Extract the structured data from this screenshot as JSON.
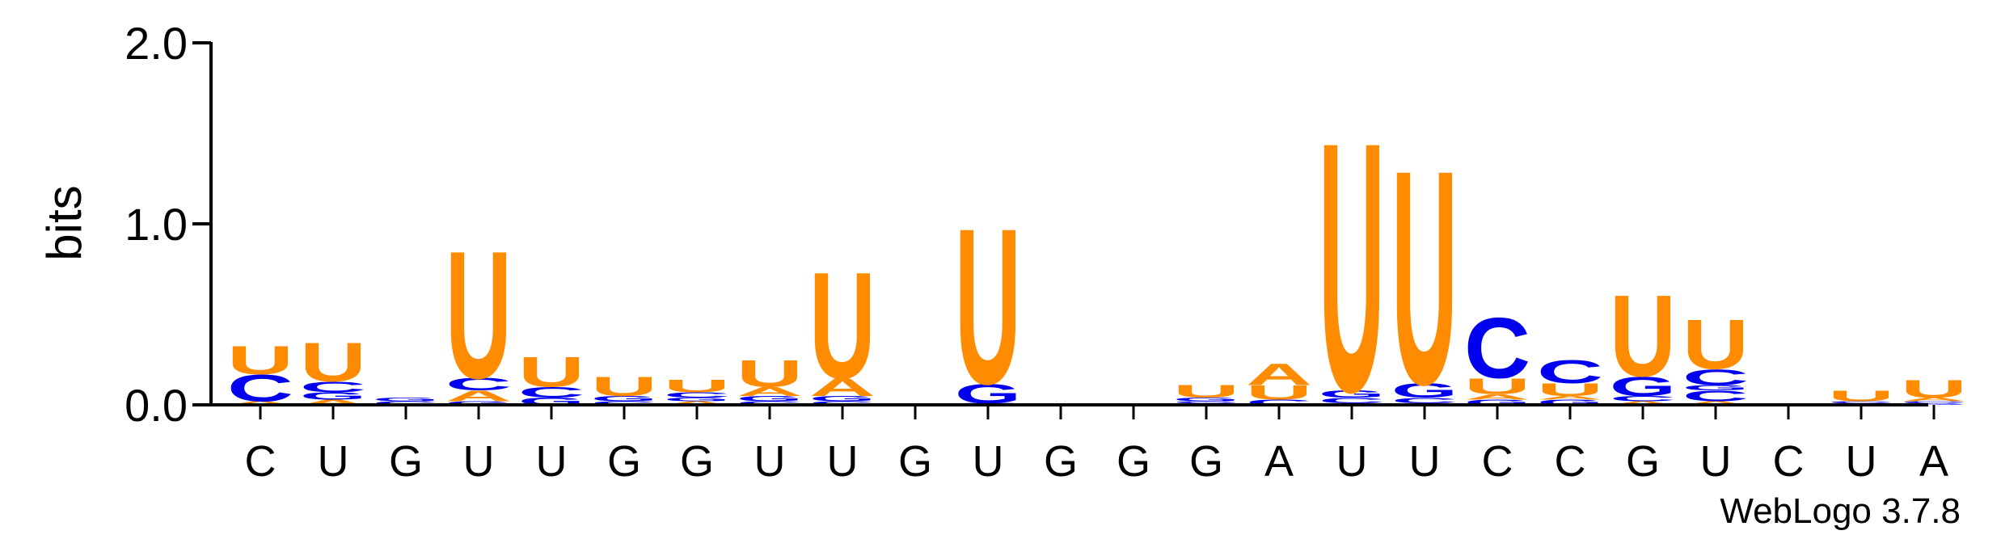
{
  "chart_data": {
    "type": "sequence-logo",
    "ylabel": "bits",
    "ylim": [
      0,
      2.0
    ],
    "yticks": [
      "0.0",
      "1.0",
      "2.0"
    ],
    "colors": {
      "U": "#ff8c00",
      "A": "#ff8c00",
      "C": "#0000ee",
      "G": "#0000ee"
    },
    "positions": [
      {
        "label": "C",
        "stack": [
          [
            "A",
            0.02
          ],
          [
            "C",
            0.15
          ],
          [
            "U",
            0.16
          ]
        ]
      },
      {
        "label": "U",
        "stack": [
          [
            "A",
            0.03
          ],
          [
            "G",
            0.04
          ],
          [
            "C",
            0.06
          ],
          [
            "U",
            0.22
          ]
        ]
      },
      {
        "label": "G",
        "stack": [
          [
            "C",
            0.02
          ],
          [
            "G",
            0.02
          ]
        ]
      },
      {
        "label": "U",
        "stack": [
          [
            "G",
            0.02
          ],
          [
            "A",
            0.06
          ],
          [
            "C",
            0.07
          ],
          [
            "U",
            0.72
          ]
        ]
      },
      {
        "label": "U",
        "stack": [
          [
            "G",
            0.04
          ],
          [
            "C",
            0.06
          ],
          [
            "U",
            0.17
          ]
        ]
      },
      {
        "label": "G",
        "stack": [
          [
            "C",
            0.02
          ],
          [
            "G",
            0.03
          ],
          [
            "U",
            0.11
          ]
        ]
      },
      {
        "label": "G",
        "stack": [
          [
            "A",
            0.02
          ],
          [
            "G",
            0.02
          ],
          [
            "C",
            0.03
          ],
          [
            "U",
            0.07
          ]
        ]
      },
      {
        "label": "U",
        "stack": [
          [
            "C",
            0.02
          ],
          [
            "G",
            0.03
          ],
          [
            "A",
            0.05
          ],
          [
            "U",
            0.15
          ]
        ]
      },
      {
        "label": "U",
        "stack": [
          [
            "C",
            0.02
          ],
          [
            "G",
            0.03
          ],
          [
            "A",
            0.1
          ],
          [
            "U",
            0.6
          ]
        ]
      },
      {
        "label": "G",
        "stack": []
      },
      {
        "label": "U",
        "stack": [
          [
            "C",
            0.01
          ],
          [
            "G",
            0.11
          ],
          [
            "U",
            0.88
          ]
        ]
      },
      {
        "label": "G",
        "stack": []
      },
      {
        "label": "G",
        "stack": []
      },
      {
        "label": "G",
        "stack": [
          [
            "A",
            0.01
          ],
          [
            "C",
            0.01
          ],
          [
            "G",
            0.02
          ],
          [
            "U",
            0.07
          ]
        ]
      },
      {
        "label": "A",
        "stack": [
          [
            "C",
            0.03
          ],
          [
            "U",
            0.08
          ],
          [
            "A",
            0.12
          ]
        ]
      },
      {
        "label": "U",
        "stack": [
          [
            "A",
            0.01
          ],
          [
            "C",
            0.03
          ],
          [
            "G",
            0.04
          ],
          [
            "U",
            1.41
          ]
        ]
      },
      {
        "label": "U",
        "stack": [
          [
            "A",
            0.01
          ],
          [
            "C",
            0.03
          ],
          [
            "G",
            0.08
          ],
          [
            "U",
            1.21
          ]
        ]
      },
      {
        "label": "C",
        "stack": [
          [
            "G",
            0.03
          ],
          [
            "A",
            0.03
          ],
          [
            "U",
            0.09
          ],
          [
            "C",
            0.34
          ]
        ]
      },
      {
        "label": "C",
        "stack": [
          [
            "G",
            0.03
          ],
          [
            "A",
            0.02
          ],
          [
            "U",
            0.07
          ],
          [
            "C",
            0.13
          ]
        ]
      },
      {
        "label": "G",
        "stack": [
          [
            "A",
            0.02
          ],
          [
            "C",
            0.03
          ],
          [
            "G",
            0.11
          ],
          [
            "U",
            0.46
          ]
        ]
      },
      {
        "label": "U",
        "stack": [
          [
            "A",
            0.02
          ],
          [
            "C",
            0.06
          ],
          [
            "G",
            0.03
          ],
          [
            "C",
            0.09
          ],
          [
            "U",
            0.28
          ]
        ]
      },
      {
        "label": "C",
        "stack": []
      },
      {
        "label": "U",
        "stack": [
          [
            "G",
            0.01
          ],
          [
            "C",
            0.01
          ],
          [
            "U",
            0.06
          ]
        ]
      },
      {
        "label": "A",
        "stack": [
          [
            "G",
            0.01
          ],
          [
            "C",
            0.01
          ],
          [
            "A",
            0.02
          ],
          [
            "U",
            0.1
          ]
        ]
      }
    ]
  },
  "credit": "WebLogo 3.7.8"
}
